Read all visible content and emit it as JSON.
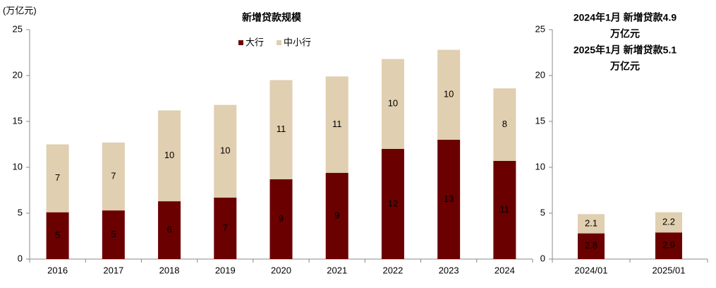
{
  "chart_data": [
    {
      "type": "stacked-bar",
      "title": "新增贷款规模",
      "y_label": "(万亿元)",
      "categories": [
        "2016",
        "2017",
        "2018",
        "2019",
        "2020",
        "2021",
        "2022",
        "2023",
        "2024"
      ],
      "series": [
        {
          "name": "大行",
          "color": "#6b0000",
          "values": [
            5.1,
            5.3,
            6.3,
            6.7,
            8.7,
            9.4,
            12.0,
            13.0,
            10.7
          ],
          "value_labels": [
            "5",
            "5",
            "6",
            "7",
            "9",
            "9",
            "12",
            "13",
            "11"
          ]
        },
        {
          "name": "中小行",
          "color": "#e0cfb0",
          "values": [
            7.4,
            7.4,
            9.9,
            10.1,
            10.8,
            10.5,
            9.8,
            9.8,
            7.9
          ],
          "value_labels": [
            "7",
            "7",
            "10",
            "10",
            "11",
            "11",
            "10",
            "10",
            "8"
          ]
        }
      ],
      "ylim": [
        0,
        25
      ],
      "yticks": [
        0,
        5,
        10,
        15,
        20,
        25
      ],
      "grid": false,
      "legend": "top"
    },
    {
      "type": "stacked-bar",
      "annotations": [
        "2024年1月 新增贷款4.9",
        "万亿元",
        "2025年1月 新增贷款5.1",
        "万亿元"
      ],
      "categories": [
        "2024/01",
        "2025/01"
      ],
      "series": [
        {
          "name": "大行",
          "color": "#6b0000",
          "values": [
            2.8,
            2.9
          ]
        },
        {
          "name": "中小行",
          "color": "#e0cfb0",
          "values": [
            2.1,
            2.2
          ]
        }
      ],
      "ylim": [
        0,
        25
      ],
      "yticks": [
        0,
        5,
        10,
        15,
        20,
        25
      ],
      "grid": false
    }
  ]
}
